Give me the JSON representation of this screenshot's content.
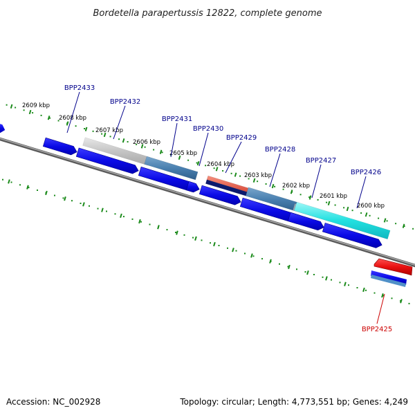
{
  "title": "Bordetella parapertussis 12822, complete genome",
  "footer": {
    "accession": "Accession: NC_002928",
    "summary": "Topology: circular; Length: 4,773,551 bp; Genes: 4,249"
  },
  "colors": {
    "backbone": "#808080",
    "ticks": "#1a8a1a",
    "gene_blue": "#0a0ae6",
    "label_blue": "#00008b",
    "label_red": "#cc0000"
  },
  "tick_labels": [
    "2609 kbp",
    "2608 kbp",
    "2607 kbp",
    "2606 kbp",
    "2605 kbp",
    "2604 kbp",
    "2603 kbp",
    "2602 kbp",
    "2601 kbp",
    "2600 kbp"
  ],
  "genes": [
    {
      "id": "BPP2433",
      "strand": "+",
      "color": "#bdbdbd"
    },
    {
      "id": "BPP2432",
      "strand": "+",
      "color": "#bdbdbd"
    },
    {
      "id": "BPP2431",
      "strand": "+",
      "color": "#4a80b0"
    },
    {
      "id": "BPP2430",
      "strand": "+",
      "color": "#e05a4a"
    },
    {
      "id": "BPP2429",
      "strand": "+",
      "color": "#0b1a6e"
    },
    {
      "id": "BPP2428",
      "strand": "+",
      "color": "#4a80b0"
    },
    {
      "id": "BPP2427",
      "strand": "+",
      "color": "#9aa8b4"
    },
    {
      "id": "BPP2426",
      "strand": "+",
      "color": "#22e0e0"
    },
    {
      "id": "BPP2425",
      "strand": "-",
      "color": "#e81010"
    }
  ]
}
